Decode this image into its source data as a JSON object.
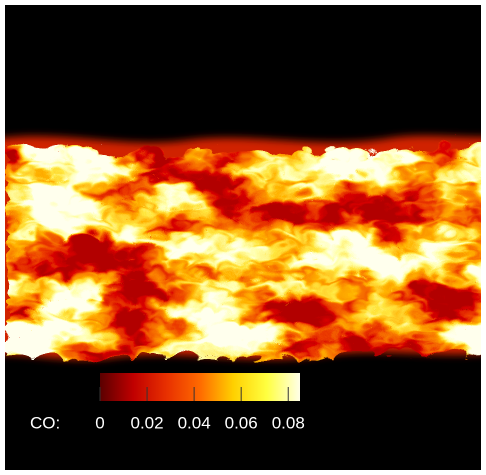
{
  "colorbar": {
    "label": "CO:",
    "lim": [
      0,
      0.085
    ],
    "ticks": [
      0,
      0.02,
      0.04,
      0.06,
      0.08
    ],
    "colors": [
      "#5a0000",
      "#c00000",
      "#e83000",
      "#ff6a00",
      "#ffd000",
      "#ffff40",
      "#ffffe8"
    ]
  }
}
